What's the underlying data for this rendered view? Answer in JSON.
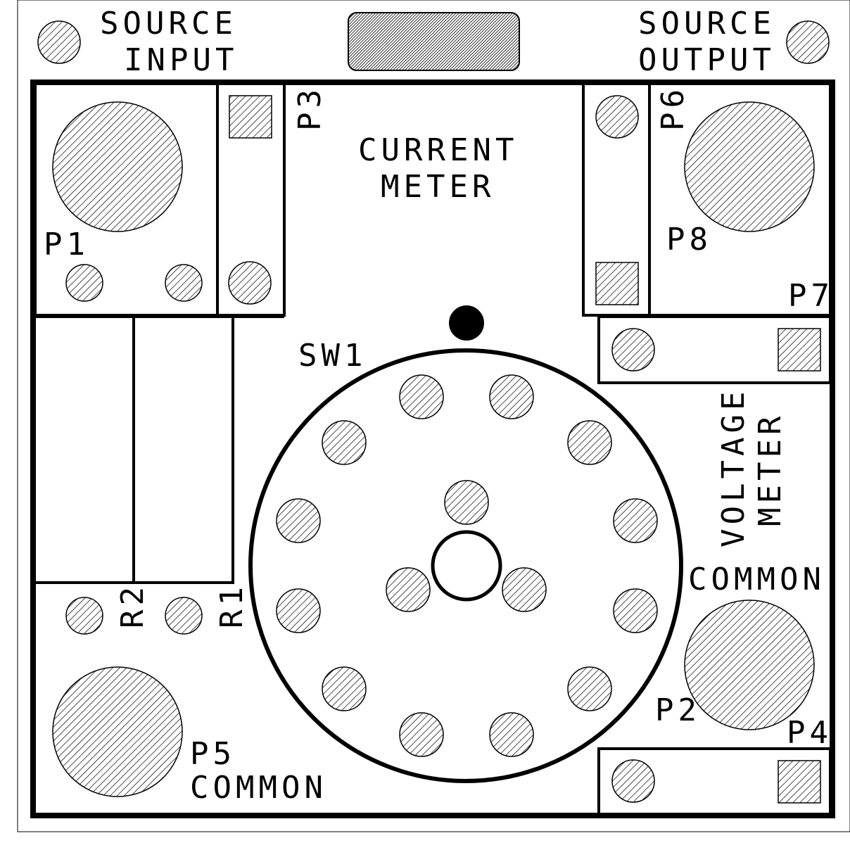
{
  "labels": {
    "source_input_1": "SOURCE",
    "source_input_2": "INPUT",
    "source_output_1": "SOURCE",
    "source_output_2": "OUTPUT",
    "current_meter_1": "CURRENT",
    "current_meter_2": "METER",
    "voltage_meter_1": "VOLTAGE",
    "voltage_meter_2": "METER",
    "common_right": "COMMON",
    "p1": "P1",
    "p2": "P2",
    "p3": "P3",
    "p4": "P4",
    "p5": "P5",
    "p5_common": "COMMON",
    "p6": "P6",
    "p7": "P7",
    "p8": "P8",
    "r1": "R1",
    "r2": "R2",
    "sw1": "SW1"
  },
  "colors": {
    "ink": "#000000",
    "paper": "#ffffff"
  }
}
